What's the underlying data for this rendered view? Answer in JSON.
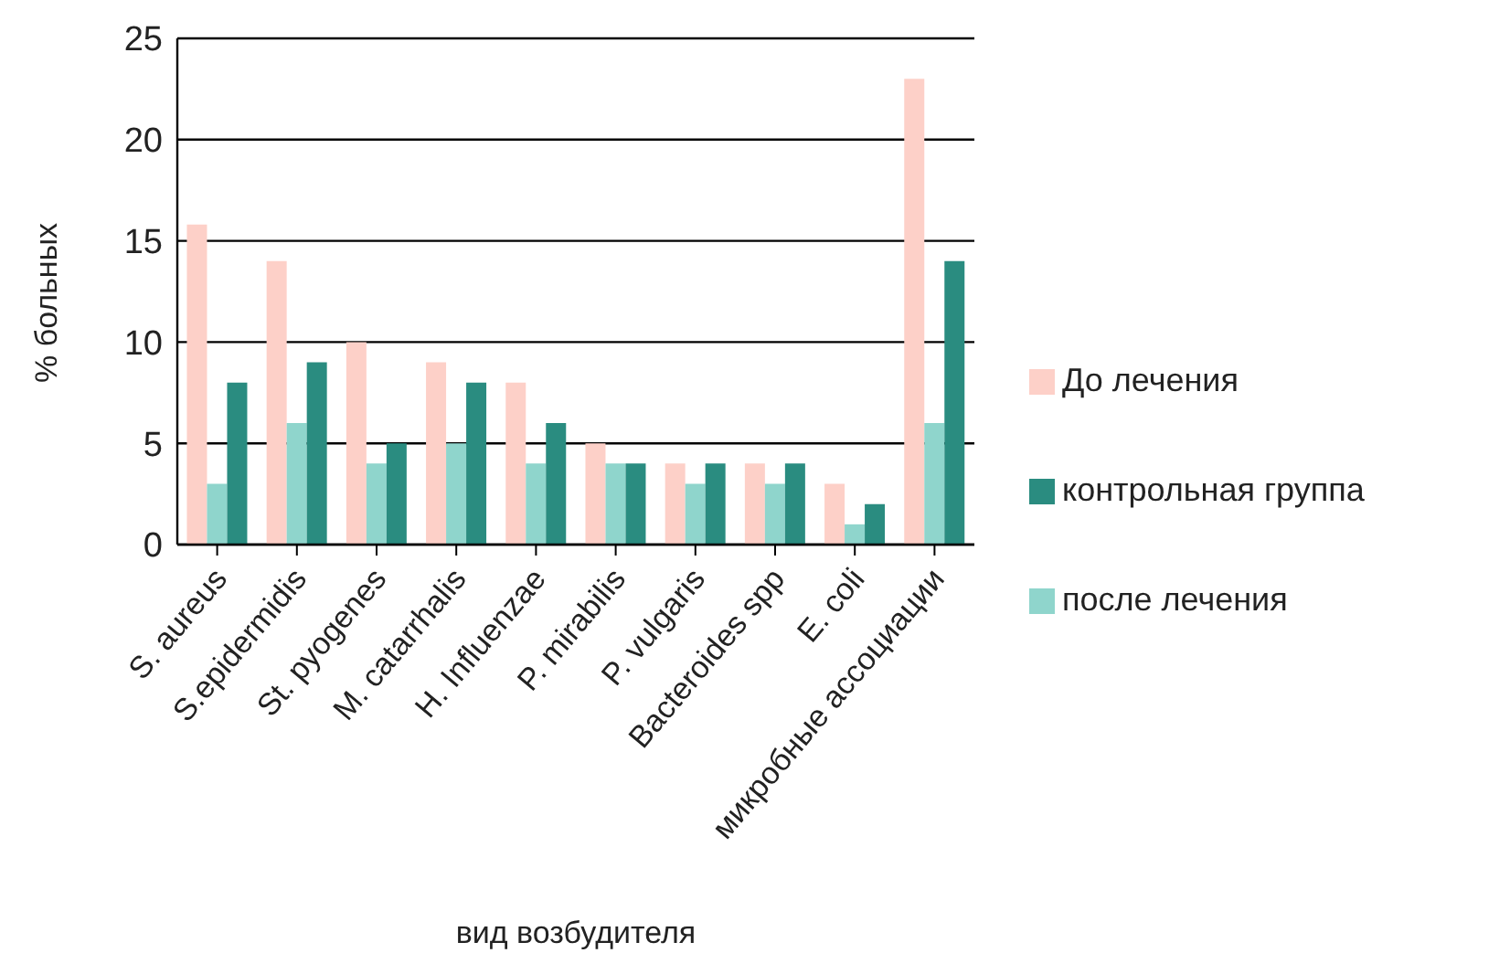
{
  "chart_data": {
    "type": "bar",
    "xlabel": "вид возбудителя",
    "ylabel": "% больных",
    "categories": [
      "S. aureus",
      "S.epidermidis",
      "St. pyogenes",
      "M. catarrhalis",
      "H. Influenzae",
      "P. mirabilis",
      "P. vulgaris",
      "Bacteroides spp",
      "E. coli",
      "микробные ассоциации"
    ],
    "series": [
      {
        "name": "До лечения",
        "color": "#fdd0c8",
        "values": [
          15.8,
          14,
          10,
          9,
          8,
          5,
          4,
          4,
          3,
          23
        ]
      },
      {
        "name": "после лечения",
        "color": "#8fd5cc",
        "values": [
          3,
          6,
          4,
          5,
          4,
          4,
          3,
          3,
          1,
          6
        ]
      },
      {
        "name": "контрольная группа",
        "color": "#2a8c80",
        "values": [
          8,
          9,
          5,
          8,
          6,
          4,
          4,
          4,
          2,
          14
        ]
      }
    ],
    "ylim": [
      0,
      25
    ],
    "yticks": [
      0,
      5,
      10,
      15,
      20,
      25
    ],
    "grid": "y",
    "legend": "right"
  }
}
